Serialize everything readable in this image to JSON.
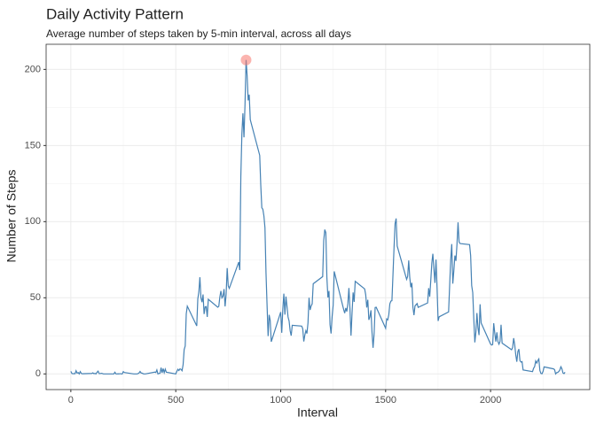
{
  "chart_data": {
    "type": "line",
    "title": "Daily Activity Pattern",
    "subtitle": "Average number of steps taken by 5-min interval, across all days",
    "x_label": "Interval",
    "y_label": "Number of Steps",
    "xlim": [
      -117.75,
      2472.75
    ],
    "ylim": [
      -10.3,
      216.5
    ],
    "xticks": [
      0,
      500,
      1000,
      1500,
      2000
    ],
    "yticks": [
      0,
      50,
      100,
      150,
      200
    ],
    "x_minor_ticks": [
      250,
      750,
      1250,
      1750,
      2250
    ],
    "y_minor_ticks": [
      25,
      75,
      125,
      175
    ],
    "grid": true,
    "x": [
      0,
      5,
      10,
      15,
      20,
      25,
      30,
      35,
      40,
      45,
      50,
      55,
      100,
      105,
      110,
      115,
      120,
      125,
      130,
      135,
      140,
      145,
      150,
      155,
      200,
      205,
      210,
      215,
      220,
      225,
      230,
      235,
      240,
      245,
      250,
      255,
      300,
      305,
      310,
      315,
      320,
      325,
      330,
      335,
      340,
      345,
      350,
      355,
      400,
      405,
      410,
      415,
      420,
      425,
      430,
      435,
      440,
      445,
      450,
      455,
      500,
      505,
      510,
      515,
      520,
      525,
      530,
      535,
      540,
      545,
      550,
      555,
      600,
      605,
      610,
      615,
      620,
      625,
      630,
      635,
      640,
      645,
      650,
      655,
      700,
      705,
      710,
      715,
      720,
      725,
      730,
      735,
      740,
      745,
      750,
      755,
      800,
      805,
      810,
      815,
      820,
      825,
      830,
      835,
      840,
      845,
      850,
      855,
      900,
      905,
      910,
      915,
      920,
      925,
      930,
      935,
      940,
      945,
      950,
      955,
      1000,
      1005,
      1010,
      1015,
      1020,
      1025,
      1030,
      1035,
      1040,
      1045,
      1050,
      1055,
      1100,
      1105,
      1110,
      1115,
      1120,
      1125,
      1130,
      1135,
      1140,
      1145,
      1150,
      1155,
      1200,
      1205,
      1210,
      1215,
      1220,
      1225,
      1230,
      1235,
      1240,
      1245,
      1250,
      1255,
      1300,
      1305,
      1310,
      1315,
      1320,
      1325,
      1330,
      1335,
      1340,
      1345,
      1350,
      1355,
      1400,
      1405,
      1410,
      1415,
      1420,
      1425,
      1430,
      1435,
      1440,
      1445,
      1450,
      1455,
      1500,
      1505,
      1510,
      1515,
      1520,
      1525,
      1530,
      1535,
      1540,
      1545,
      1550,
      1555,
      1600,
      1605,
      1610,
      1615,
      1620,
      1625,
      1630,
      1635,
      1640,
      1645,
      1650,
      1655,
      1700,
      1705,
      1710,
      1715,
      1720,
      1725,
      1730,
      1735,
      1740,
      1745,
      1750,
      1755,
      1800,
      1805,
      1810,
      1815,
      1820,
      1825,
      1830,
      1835,
      1840,
      1845,
      1850,
      1855,
      1900,
      1905,
      1910,
      1915,
      1920,
      1925,
      1930,
      1935,
      1940,
      1945,
      1950,
      1955,
      2000,
      2005,
      2010,
      2015,
      2020,
      2025,
      2030,
      2035,
      2040,
      2045,
      2050,
      2055,
      2100,
      2105,
      2110,
      2115,
      2120,
      2125,
      2130,
      2135,
      2140,
      2145,
      2150,
      2155,
      2200,
      2205,
      2210,
      2215,
      2220,
      2225,
      2230,
      2235,
      2240,
      2245,
      2250,
      2255,
      2300,
      2305,
      2310,
      2315,
      2320,
      2325,
      2330,
      2335,
      2340,
      2345,
      2350,
      2355
    ],
    "series": [
      {
        "color": "#4682b4",
        "values": [
          1.7,
          0.3,
          0.1,
          0.2,
          0.1,
          2.1,
          0.5,
          0.9,
          0,
          1.5,
          0.3,
          0.1,
          0.3,
          0.7,
          0.2,
          0.3,
          0,
          1.1,
          1.8,
          0.2,
          0.2,
          0.4,
          0.3,
          0,
          0,
          0,
          1.1,
          0,
          0,
          0.1,
          0,
          0.2,
          0,
          0,
          1.5,
          0.9,
          0,
          0,
          0,
          0,
          0.2,
          0.6,
          1.6,
          0.6,
          0.5,
          0.1,
          0,
          0,
          1.2,
          0.9,
          2.6,
          0,
          0.3,
          0.4,
          4.1,
          0.7,
          3.5,
          0.8,
          3.1,
          1.1,
          0,
          1.6,
          3,
          2.2,
          3.3,
          3,
          2.1,
          6.1,
          16,
          18.3,
          39.5,
          44.5,
          31.5,
          49.3,
          53.8,
          63.5,
          50,
          47.1,
          52.2,
          39.3,
          44,
          44.2,
          37.4,
          49,
          43.8,
          44.4,
          50.5,
          54.5,
          49.9,
          51,
          55.7,
          44.3,
          52.3,
          69.5,
          57.8,
          56.2,
          73.4,
          68.2,
          129.4,
          157.5,
          171.2,
          155.4,
          177.3,
          206.2,
          195.9,
          179.6,
          183.4,
          167,
          143.5,
          124,
          109.1,
          108.1,
          103.7,
          96,
          66.2,
          45.2,
          24.8,
          38.8,
          35,
          21.1,
          40.6,
          27,
          42.4,
          52.7,
          38.9,
          50.8,
          44.3,
          37.4,
          34.7,
          28.3,
          25.1,
          31.9,
          31.4,
          29.7,
          21.3,
          25.5,
          28.4,
          26.5,
          33.4,
          50,
          42,
          44.6,
          46,
          59.2,
          63.9,
          87.7,
          94.8,
          92.8,
          63.4,
          50.2,
          54.5,
          32.4,
          26.5,
          37.7,
          45.1,
          67.3,
          42.3,
          39.9,
          43.3,
          41,
          46.2,
          56.4,
          42.8,
          25.1,
          40,
          53.5,
          47.3,
          60.8,
          55.8,
          52,
          43.6,
          48.7,
          35.5,
          37.5,
          41.8,
          27.5,
          17.1,
          26.1,
          43.6,
          43.8,
          30,
          36.1,
          35.5,
          38.8,
          46,
          47.8,
          48.1,
          65.3,
          82.9,
          98.7,
          102.1,
          84,
          62.1,
          64.1,
          74.5,
          63.2,
          56.9,
          59.8,
          43.9,
          38.6,
          44.7,
          45.5,
          46.2,
          43.7,
          46.6,
          56.3,
          50.7,
          61.2,
          72.7,
          78.9,
          68.9,
          59.7,
          75.1,
          56.5,
          34.8,
          37.5,
          40.7,
          58,
          74.7,
          85.3,
          59.3,
          67.8,
          77.7,
          74.2,
          85.3,
          99.5,
          86.6,
          85.6,
          84.9,
          77.8,
          58,
          53.4,
          36.3,
          20.7,
          27.4,
          40,
          30.2,
          25.5,
          45.7,
          33.5,
          19.6,
          19,
          19.3,
          33.3,
          26.8,
          21.2,
          27.3,
          21.3,
          19.5,
          21.3,
          32.3,
          20.2,
          15.9,
          17.2,
          23.5,
          19.2,
          12.5,
          8,
          14.7,
          16.3,
          8.7,
          7.8,
          8.1,
          2.6,
          1.5,
          3.7,
          4.8,
          8.5,
          7.1,
          8.7,
          9.8,
          2.2,
          0.3,
          0.1,
          1.6,
          4.6,
          3.3,
          2.8,
          0,
          0.8,
          1,
          1.6,
          2.6,
          4.7,
          3.3,
          0.6,
          0.2,
          1.1
        ]
      }
    ],
    "max_point": {
      "x": 835,
      "y": 206.2,
      "color": "#f8766d"
    }
  }
}
